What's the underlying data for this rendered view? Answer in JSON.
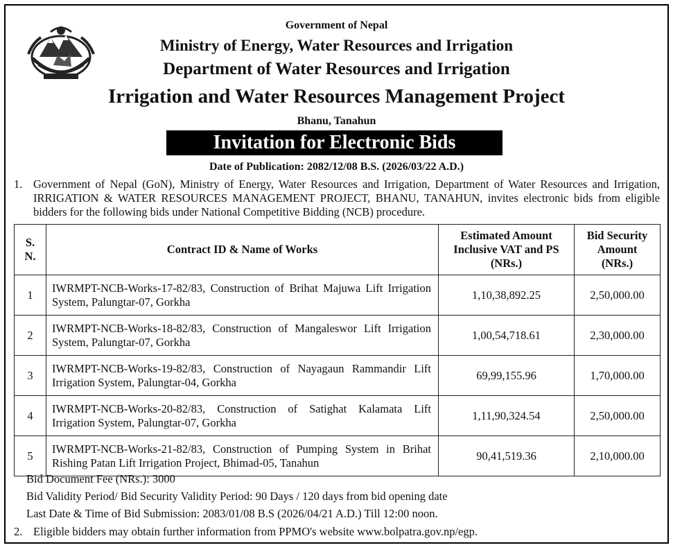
{
  "header": {
    "government": "Government of Nepal",
    "ministry": "Ministry of Energy, Water Resources and Irrigation",
    "department": "Department of Water Resources and Irrigation",
    "project": "Irrigation and Water Resources Management Project",
    "location": "Bhanu, Tanahun",
    "emblem_icon": "nepal-government-emblem"
  },
  "notice": {
    "title": "Invitation for Electronic Bids",
    "publication_date": "Date of Publication: 2082/12/08 B.S. (2026/03/22 A.D.)"
  },
  "intro": {
    "number": "1.",
    "text": "Government of Nepal (GoN), Ministry of Energy, Water Resources and Irrigation, Department of Water Resources and Irrigation, IRRIGATION & WATER RESOURCES MANAGEMENT PROJECT, BHANU, TANAHUN, invites electronic bids from eligible bidders for the following bids under National Competitive Bidding (NCB) procedure."
  },
  "table": {
    "headers": {
      "sn": "S. N.",
      "work": "Contract ID & Name of Works",
      "estimate": "Estimated Amount Inclusive VAT and PS (NRs.)",
      "security": "Bid Security Amount (NRs.)"
    },
    "rows": [
      {
        "sn": "1",
        "work": "IWRMPT-NCB-Works-17-82/83, Construction of Brihat Majuwa Lift Irrigation System, Palungtar-07, Gorkha",
        "estimate": "1,10,38,892.25",
        "security": "2,50,000.00"
      },
      {
        "sn": "2",
        "work": "IWRMPT-NCB-Works-18-82/83, Construction of Mangaleswor Lift Irrigation System, Palungtar-07, Gorkha",
        "estimate": "1,00,54,718.61",
        "security": "2,30,000.00"
      },
      {
        "sn": "3",
        "work": "IWRMPT-NCB-Works-19-82/83, Construction of Nayagaun Rammandir Lift Irrigation System, Palungtar-04, Gorkha",
        "estimate": "69,99,155.96",
        "security": "1,70,000.00"
      },
      {
        "sn": "4",
        "work": "IWRMPT-NCB-Works-20-82/83, Construction of Satighat Kalamata Lift Irrigation System, Palungtar-07, Gorkha",
        "estimate": "1,11,90,324.54",
        "security": "2,50,000.00"
      },
      {
        "sn": "5",
        "work": "IWRMPT-NCB-Works-21-82/83, Construction of Pumping System in Brihat Rishing Patan Lift Irrigation Project, Bhimad-05, Tanahun",
        "estimate": "90,41,519.36",
        "security": "2,10,000.00"
      }
    ]
  },
  "notes": {
    "fee": "Bid Document Fee (NRs.): 3000",
    "validity": "Bid Validity Period/ Bid Security Validity Period: 90 Days / 120 days from bid opening date",
    "deadline": "Last Date & Time of Bid Submission: 2083/01/08 B.S (2026/04/21 A.D.) Till 12:00 noon."
  },
  "footer": {
    "number": "2.",
    "text": "Eligible bidders may obtain further information from PPMO's website www.bolpatra.gov.np/egp."
  }
}
